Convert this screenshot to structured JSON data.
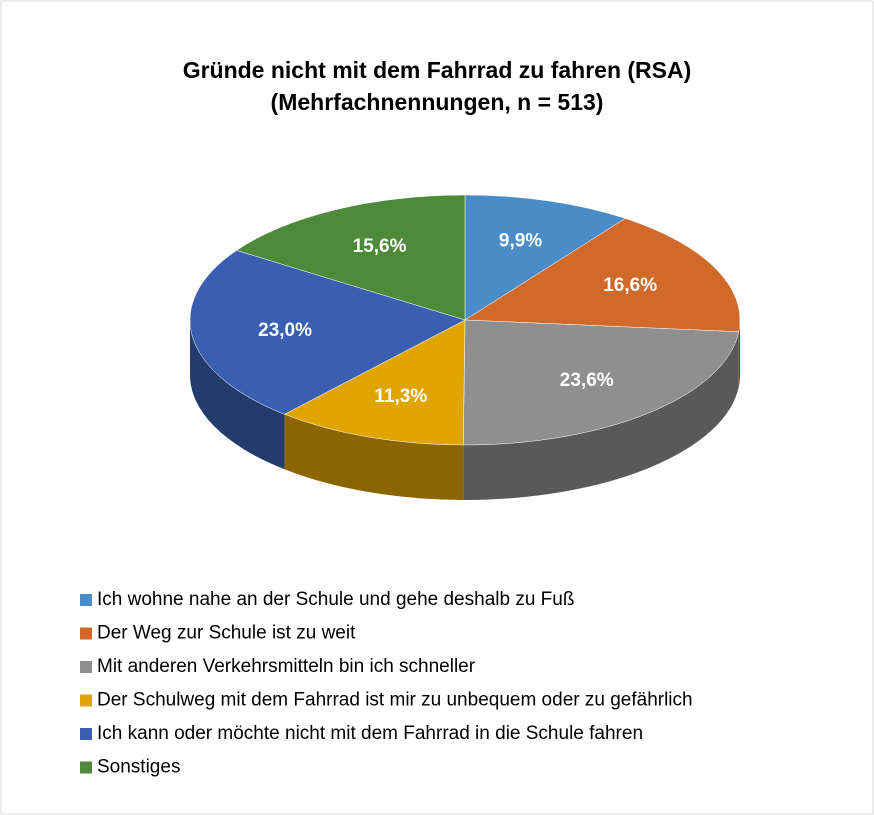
{
  "chart_data": {
    "type": "pie",
    "title": "Gründe nicht mit dem Fahrrad zu fahren (RSA)",
    "subtitle": "(Mehrfachnennungen, n = 513)",
    "categories": [
      "Ich wohne nahe an der Schule und gehe deshalb zu Fuß",
      "Der Weg zur Schule ist zu weit",
      "Mit anderen Verkehrsmitteln bin ich schneller",
      "Der Schulweg mit dem Fahrrad ist mir zu unbequem oder zu gefährlich",
      "Ich kann oder möchte nicht mit dem Fahrrad in die Schule fahren",
      "Sonstiges"
    ],
    "values": [
      9.9,
      16.6,
      23.6,
      11.3,
      23.0,
      15.6
    ],
    "value_labels": [
      "9,9%",
      "16,6%",
      "23,6%",
      "11,3%",
      "23,0%",
      "15,6%"
    ],
    "colors": [
      "#4a8cc8",
      "#d0692a",
      "#8f8f8f",
      "#e0a500",
      "#3a5fb0",
      "#4e8a3a"
    ],
    "legend": "bottom"
  }
}
